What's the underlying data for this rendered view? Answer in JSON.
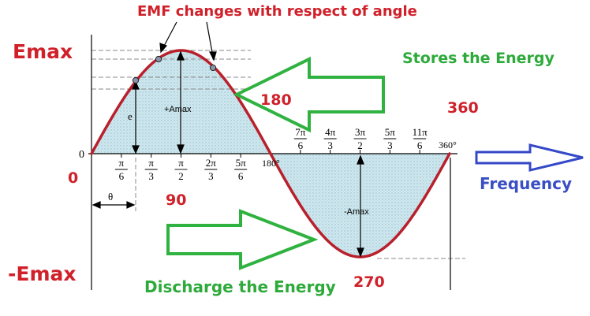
{
  "title": "EMF changes with respect of angle",
  "labels": {
    "emax": "Emax",
    "neg_emax": "-Emax",
    "zero_axis": "0",
    "zero_red": "0",
    "ninety": "90",
    "one_eighty": "180",
    "two_seventy": "270",
    "three_sixty": "360",
    "stores": "Stores the Energy",
    "discharge": "Discharge the Energy",
    "frequency": "Frequency",
    "plus_amax": "+Amax",
    "minus_amax": "-Amax",
    "e": "e",
    "theta": "θ",
    "deg180": "180°",
    "deg360": "360°"
  },
  "ticks_top": [
    {
      "num": "π",
      "den": "6"
    },
    {
      "num": "π",
      "den": "3"
    },
    {
      "num": "π",
      "den": "2"
    },
    {
      "num": "2π",
      "den": "3"
    },
    {
      "num": "5π",
      "den": "6"
    }
  ],
  "ticks_bottom": [
    {
      "num": "7π",
      "den": "6"
    },
    {
      "num": "4π",
      "den": "3"
    },
    {
      "num": "3π",
      "den": "2"
    },
    {
      "num": "5π",
      "den": "3"
    },
    {
      "num": "11π",
      "den": "6"
    }
  ],
  "colors": {
    "curve": "#b8202c",
    "fill": "#b9dde6",
    "arrow_green": "#2fb23f",
    "arrow_blue": "#3448c8",
    "text_red": "#d0202a",
    "text_green": "#2daa3a",
    "text_blue": "#3a4fc4"
  }
}
